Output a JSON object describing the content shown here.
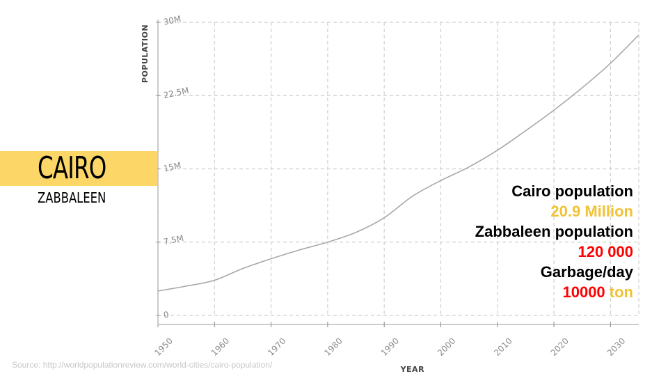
{
  "title": "CAIRO",
  "subtitle": "ZABBALEEN",
  "stats": {
    "cairo_population_label": "Cairo population",
    "cairo_population_value": "20.9 Million",
    "zabbaleen_population_label": "Zabbaleen population",
    "zabbaleen_population_value": "120 000",
    "garbage_label": "Garbage/day",
    "garbage_value": "10000",
    "garbage_unit": "ton"
  },
  "source": "Source: http://worldpopulationreview.com/world-cities/cairo-population/",
  "colors": {
    "title_band": "#fcd768",
    "highlight_yellow": "#f1c232",
    "highlight_red": "#ff0000",
    "line": "#a8a8a8",
    "grid": "#cfcfcf"
  },
  "chart_data": {
    "type": "line",
    "xlabel": "YEAR",
    "ylabel": "POPULATION",
    "x_ticks": [
      1950,
      1960,
      1970,
      1980,
      1990,
      2000,
      2010,
      2020,
      2030
    ],
    "y_ticks": [
      0,
      7500000,
      15000000,
      22500000,
      30000000
    ],
    "y_tick_labels": [
      "0",
      "7.5M",
      "15M",
      "22.5M",
      "30M"
    ],
    "xlim": [
      1950,
      2035
    ],
    "ylim": [
      0,
      30000000
    ],
    "grid": true,
    "series": [
      {
        "x": [
          1950,
          1955,
          1960,
          1965,
          1970,
          1975,
          1980,
          1985,
          1990,
          1995,
          2000,
          2005,
          2010,
          2015,
          2020,
          2025,
          2030,
          2035
        ],
        "values": [
          2500000,
          3000000,
          3600000,
          4800000,
          5800000,
          6700000,
          7500000,
          8500000,
          10000000,
          12200000,
          13800000,
          15200000,
          16900000,
          18900000,
          21000000,
          23300000,
          25800000,
          28700000
        ]
      }
    ]
  }
}
